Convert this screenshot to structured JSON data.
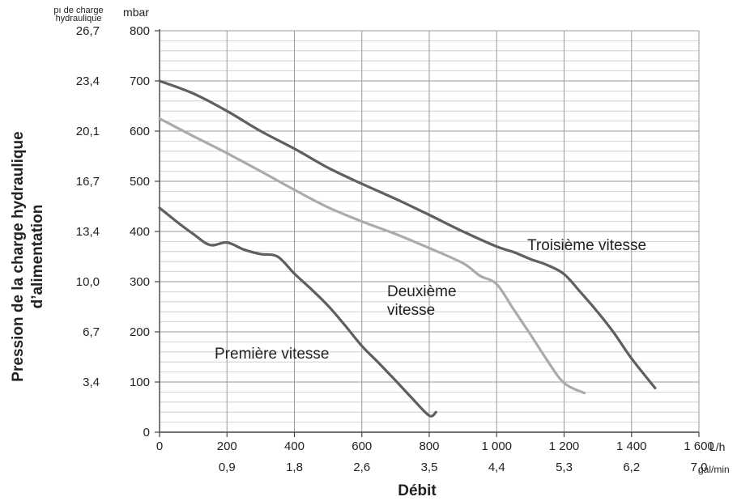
{
  "chart_data": {
    "type": "line",
    "ylabel": [
      "Pression de la charge hydraulique",
      "d’alimentation"
    ],
    "xlabel": "Débit",
    "y_unit_primary": "mbar",
    "y_unit_secondary": [
      "pı de charge",
      "hydraulique"
    ],
    "x_unit_primary": "L/h",
    "x_unit_secondary": "gal/min",
    "xlim": [
      0,
      1600
    ],
    "ylim": [
      0,
      800
    ],
    "x_ticks": [
      {
        "value": 0,
        "label": "0",
        "sub": ""
      },
      {
        "value": 200,
        "label": "200",
        "sub": "0,9"
      },
      {
        "value": 400,
        "label": "400",
        "sub": "1,8"
      },
      {
        "value": 600,
        "label": "600",
        "sub": "2,6"
      },
      {
        "value": 800,
        "label": "800",
        "sub": "3,5"
      },
      {
        "value": 1000,
        "label": "1 000",
        "sub": "4,4"
      },
      {
        "value": 1200,
        "label": "1 200",
        "sub": "5,3"
      },
      {
        "value": 1400,
        "label": "1 400",
        "sub": "6,2"
      },
      {
        "value": 1600,
        "label": "1 600",
        "sub": "7,0"
      }
    ],
    "y_ticks": [
      {
        "value": 0,
        "label": "0",
        "alt": ""
      },
      {
        "value": 100,
        "label": "100",
        "alt": "3,4"
      },
      {
        "value": 200,
        "label": "200",
        "alt": "6,7"
      },
      {
        "value": 300,
        "label": "300",
        "alt": "10,0"
      },
      {
        "value": 400,
        "label": "400",
        "alt": "13,4"
      },
      {
        "value": 500,
        "label": "500",
        "alt": "16,7"
      },
      {
        "value": 600,
        "label": "600",
        "alt": "20,1"
      },
      {
        "value": 700,
        "label": "700",
        "alt": "23,4"
      },
      {
        "value": 800,
        "label": "800",
        "alt": "26,7"
      }
    ],
    "minor_y_step": 20,
    "grid": true,
    "series": [
      {
        "name": "Première vitesse",
        "label_lines": [
          "Première vitesse"
        ],
        "color": "#5f5f5f",
        "x": [
          0,
          50,
          100,
          150,
          200,
          250,
          300,
          350,
          400,
          450,
          500,
          550,
          600,
          650,
          700,
          750,
          800,
          820
        ],
        "y": [
          447,
          420,
          395,
          373,
          378,
          364,
          355,
          350,
          316,
          285,
          252,
          213,
          172,
          138,
          103,
          67,
          33,
          40
        ]
      },
      {
        "name": "Deuxième vitesse",
        "label_lines": [
          "Deuxième",
          "vitesse"
        ],
        "color": "#ababab",
        "x": [
          0,
          100,
          200,
          300,
          400,
          500,
          600,
          700,
          800,
          900,
          950,
          1000,
          1050,
          1100,
          1150,
          1200,
          1260
        ],
        "y": [
          625,
          590,
          556,
          520,
          483,
          448,
          420,
          395,
          367,
          337,
          312,
          295,
          245,
          195,
          143,
          98,
          78
        ]
      },
      {
        "name": "Troisième vitesse",
        "label_lines": [
          "Troisième vitesse"
        ],
        "color": "#5f5f5f",
        "x": [
          0,
          100,
          200,
          300,
          400,
          500,
          600,
          700,
          800,
          900,
          1000,
          1050,
          1100,
          1150,
          1200,
          1250,
          1300,
          1350,
          1400,
          1470
        ],
        "y": [
          700,
          675,
          640,
          600,
          565,
          527,
          495,
          465,
          433,
          400,
          370,
          359,
          345,
          333,
          315,
          278,
          239,
          196,
          147,
          88
        ]
      }
    ]
  }
}
